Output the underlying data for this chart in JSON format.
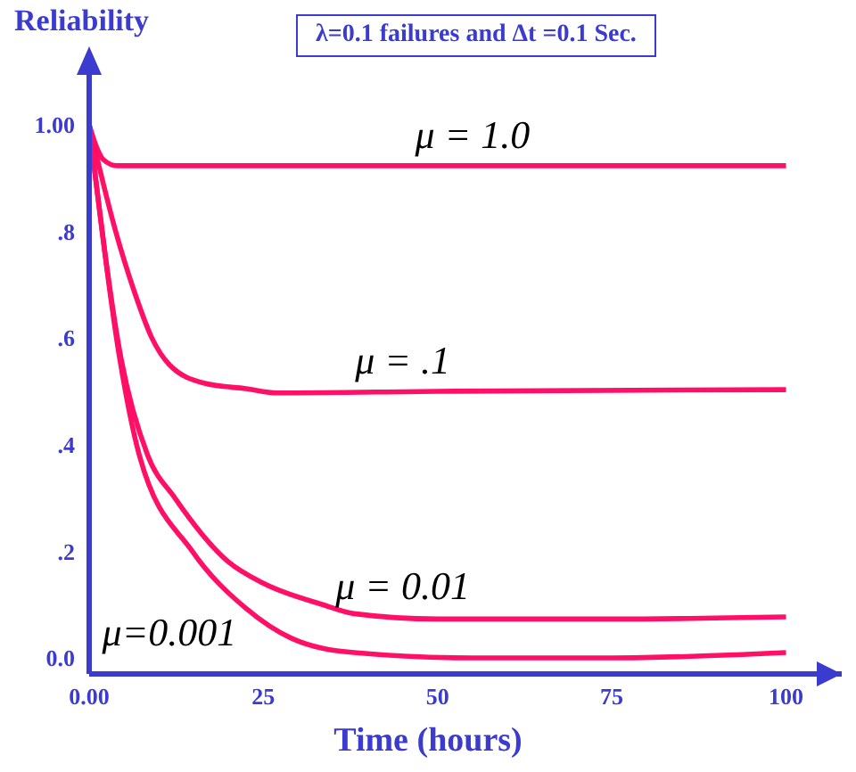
{
  "chart_data": {
    "type": "line",
    "title": "λ=0.1 failures and Δt =0.1 Sec.",
    "xlabel": "Time (hours)",
    "ylabel": "Reliability",
    "xlim": [
      0,
      108
    ],
    "xticks": [
      {
        "value": 0,
        "label": "0.00"
      },
      25,
      50,
      75,
      100
    ],
    "ylim": [
      -0.03,
      1.1
    ],
    "yticks": [
      {
        "value": 0,
        "label": "0.0"
      },
      {
        "value": 0.2,
        "label": ".2"
      },
      {
        "value": 0.4,
        "label": ".4"
      },
      {
        "value": 0.6,
        "label": ".6"
      },
      {
        "value": 0.8,
        "label": ".8"
      },
      {
        "value": 1,
        "label": "1.00"
      }
    ],
    "grid": false,
    "marker": "none",
    "line_style": "solid",
    "series": [
      {
        "name": "μ = 1.0",
        "color": "#ff0f66",
        "x": [
          0,
          1,
          2,
          4,
          100
        ],
        "values": [
          1,
          0.96,
          0.935,
          0.923,
          0.923
        ]
      },
      {
        "name": "μ = .1",
        "color": "#ff0f66",
        "x": [
          0,
          3.8,
          6.4,
          9,
          11.5,
          16.6,
          22.5,
          27,
          50,
          100
        ],
        "values": [
          1,
          0.8,
          0.69,
          0.6,
          0.55,
          0.515,
          0.505,
          0.497,
          0.5,
          0.503
        ]
      },
      {
        "name": "μ = 0.01",
        "color": "#ff0f66",
        "x": [
          0,
          4.6,
          8.4,
          12.3,
          20,
          25,
          33.5,
          38,
          50,
          75,
          100
        ],
        "values": [
          1,
          0.56,
          0.38,
          0.3,
          0.18,
          0.14,
          0.1,
          0.083,
          0.073,
          0.073,
          0.077
        ]
      },
      {
        "name": "μ=0.001",
        "color": "#ff0f66",
        "x": [
          0,
          4.4,
          7.2,
          14.8,
          22.5,
          29,
          38,
          55,
          75,
          100
        ],
        "values": [
          1,
          0.56,
          0.38,
          0.2,
          0.093,
          0.037,
          0.01,
          0,
          0,
          0.01
        ]
      }
    ]
  }
}
